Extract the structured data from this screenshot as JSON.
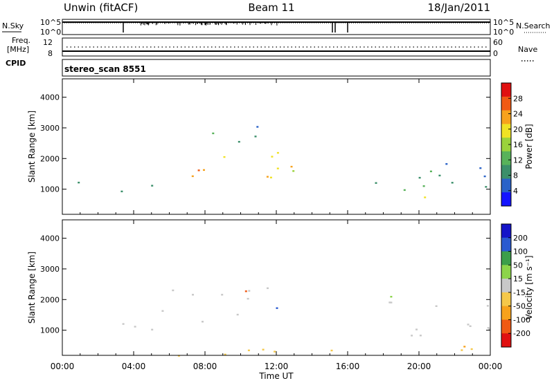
{
  "header": {
    "site": "Unwin (fitACF)",
    "beam": "Beam 11",
    "date": "18/Jan/2011"
  },
  "left_labels": {
    "nsky": "N.Sky",
    "freq_line1": "Freq.",
    "freq_line2": "[MHz]",
    "cpid": "CPID"
  },
  "right_labels": {
    "nsearch": "N.Search",
    "nave": "Nave"
  },
  "strip_ticks": {
    "noise_left": [
      "10^5",
      "10^0"
    ],
    "noise_right": [
      "10^5",
      "10^0"
    ],
    "freq_left": [
      "12",
      "8"
    ],
    "nave_right": [
      "60",
      "0"
    ]
  },
  "cpid_text": "stereo_scan 8551",
  "colors": {
    "power": [
      "#1414ff",
      "#2a62c8",
      "#3b8f6a",
      "#58b25a",
      "#9ad23c",
      "#f0e224",
      "#f7a21c",
      "#f05a14",
      "#e01010"
    ],
    "velocity": [
      "#e01010",
      "#f05a14",
      "#f7a21c",
      "#f5c84a",
      "#c8c8c8",
      "#8cd44a",
      "#3b9e4a",
      "#2a5ad0",
      "#1414c8"
    ]
  },
  "chart_data": [
    {
      "type": "heatmap",
      "panel": "power",
      "xlabel": "Time UT",
      "ylabel": "Slant Range [km]",
      "xlim": [
        0,
        24
      ],
      "ylim": [
        180,
        4600
      ],
      "x_ticks": [
        "00:00",
        "04:00",
        "08:00",
        "12:00",
        "16:00",
        "20:00",
        "00:00"
      ],
      "y_ticks": [
        1000,
        2000,
        3000,
        4000
      ],
      "colorbar": {
        "label": "Power [dB]",
        "range": [
          0,
          32
        ],
        "ticks": [
          4,
          8,
          12,
          16,
          20,
          24,
          28
        ]
      },
      "regions": [
        {
          "t_start": 0.0,
          "t_end": 5.0,
          "r_low": 800,
          "r_high": 1300,
          "level_db": 6
        },
        {
          "t_start": 5.5,
          "t_end": 13.0,
          "r_low": 1200,
          "r_high": 2400,
          "level_db": 22
        },
        {
          "t_start": 7.5,
          "t_end": 11.5,
          "r_low": 2500,
          "r_high": 3300,
          "level_db": 8
        },
        {
          "t_start": 12.5,
          "t_end": 13.5,
          "r_low": 1200,
          "r_high": 1800,
          "level_db": 20
        },
        {
          "t_start": 17.5,
          "t_end": 24.0,
          "r_low": 800,
          "r_high": 2300,
          "level_db": 10
        },
        {
          "t_start": 19.0,
          "t_end": 21.0,
          "r_low": 500,
          "r_high": 900,
          "level_db": 22
        }
      ]
    },
    {
      "type": "heatmap",
      "panel": "velocity",
      "xlabel": "Time UT",
      "ylabel": "Slant Range [km]",
      "xlim": [
        0,
        24
      ],
      "ylim": [
        180,
        4600
      ],
      "x_ticks": [
        "00:00",
        "04:00",
        "08:00",
        "12:00",
        "16:00",
        "20:00",
        "00:00"
      ],
      "y_ticks": [
        1000,
        2000,
        3000,
        4000
      ],
      "colorbar": {
        "label": "Velocity [m s⁻¹]",
        "ticks": [
          "200",
          "100",
          "50",
          "15",
          "-15",
          "-50",
          "-100",
          "-200"
        ]
      },
      "regions": [
        {
          "t_start": 0.0,
          "t_end": 5.0,
          "r_low": 800,
          "r_high": 1300,
          "velocity": 0
        },
        {
          "t_start": 5.5,
          "t_end": 13.0,
          "r_low": 1300,
          "r_high": 2400,
          "velocity": 0
        },
        {
          "t_start": 11.5,
          "t_end": 13.0,
          "r_low": 1200,
          "r_high": 2000,
          "velocity": 150
        },
        {
          "t_start": 10.0,
          "t_end": 11.0,
          "r_low": 2000,
          "r_high": 2900,
          "velocity": -150
        },
        {
          "t_start": 17.5,
          "t_end": 24.0,
          "r_low": 700,
          "r_high": 2300,
          "velocity": 0
        },
        {
          "t_start": 0.0,
          "t_end": 24.0,
          "r_low": 180,
          "r_high": 500,
          "velocity": -40
        }
      ]
    }
  ]
}
